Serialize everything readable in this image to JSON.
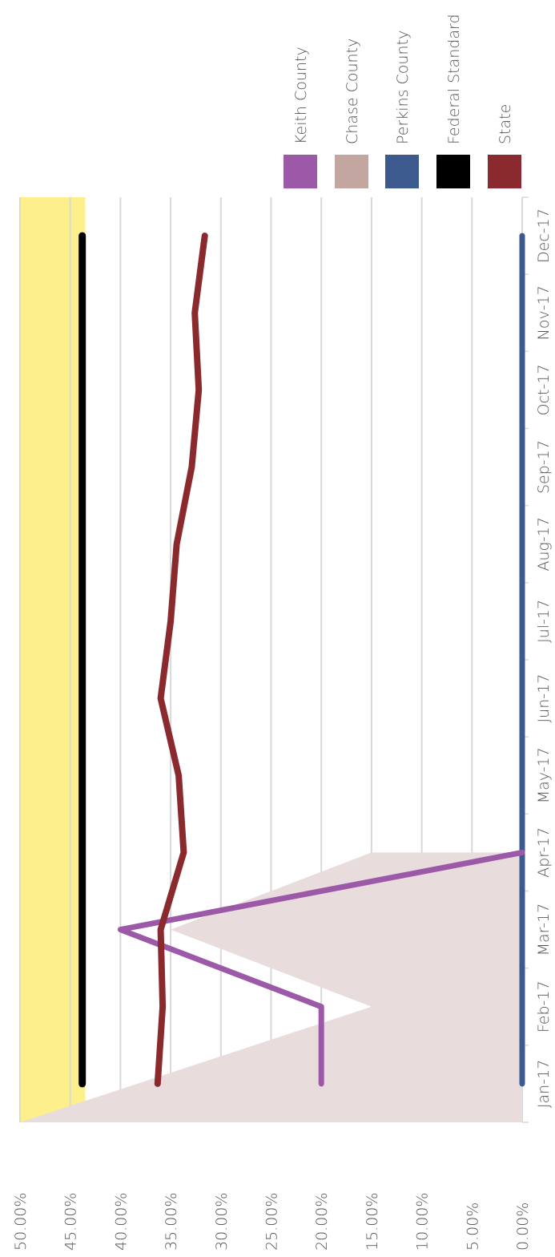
{
  "chart_data": {
    "type": "line",
    "orientation": "rotated-90-clockwise",
    "categories": [
      "Jan-17",
      "Feb-17",
      "Mar-17",
      "Apr-17",
      "May-17",
      "Jun-17",
      "Jul-17",
      "Aug-17",
      "Sep-17",
      "Oct-17",
      "Nov-17",
      "Dec-17"
    ],
    "y_ticks": [
      "0.00%",
      "5.00%",
      "10.00%",
      "15.00%",
      "20.00%",
      "25.00%",
      "30.00%",
      "35.00%",
      "40.00%",
      "45.00%",
      "50.00%"
    ],
    "ylim": [
      0,
      50
    ],
    "grid": true,
    "legend_position": "right",
    "threshold_band": {
      "from": 43.5,
      "to": 50,
      "color": "#fdf08c"
    },
    "series": [
      {
        "name": "Keith County",
        "color": "#9b59a8",
        "values": [
          20,
          20,
          40,
          0,
          null,
          null,
          null,
          null,
          null,
          null,
          null,
          null
        ]
      },
      {
        "name": "Chase County",
        "color": "#c4a6a0",
        "values": [
          50,
          15,
          35,
          15,
          null,
          null,
          null,
          null,
          null,
          null,
          null,
          null
        ]
      },
      {
        "name": "Perkins County",
        "color": "#3d5a8f",
        "values": [
          0,
          0,
          0,
          0,
          0,
          0,
          0,
          0,
          0,
          0,
          0,
          0
        ]
      },
      {
        "name": "Federal Standard",
        "color": "#000000",
        "values": [
          43.8,
          43.8,
          43.8,
          43.8,
          43.8,
          43.8,
          43.8,
          43.8,
          43.8,
          43.8,
          43.8,
          43.8
        ]
      },
      {
        "name": "State",
        "color": "#8b2a2e",
        "values": [
          36.3,
          35.8,
          36.0,
          33.7,
          34.2,
          36.0,
          35.0,
          34.4,
          32.9,
          32.2,
          32.6,
          31.6
        ]
      }
    ]
  }
}
